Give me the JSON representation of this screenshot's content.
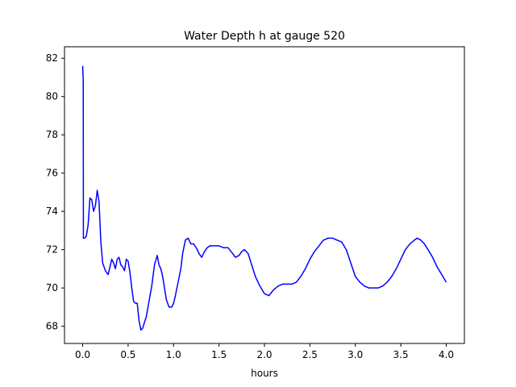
{
  "chart_data": {
    "type": "line",
    "title": "Water Depth h at gauge 520",
    "xlabel": "hours",
    "ylabel": "",
    "xlim": [
      -0.2,
      4.2
    ],
    "ylim": [
      67.1,
      82.6
    ],
    "xticks": [
      0.0,
      0.5,
      1.0,
      1.5,
      2.0,
      2.5,
      3.0,
      3.5,
      4.0
    ],
    "xtick_labels": [
      "0.0",
      "0.5",
      "1.0",
      "1.5",
      "2.0",
      "2.5",
      "3.0",
      "3.5",
      "4.0"
    ],
    "yticks": [
      68,
      70,
      72,
      74,
      76,
      78,
      80,
      82
    ],
    "ytick_labels": [
      "68",
      "70",
      "72",
      "74",
      "76",
      "78",
      "80",
      "82"
    ],
    "grid": false,
    "series": [
      {
        "color": "#0000ff",
        "x": [
          0.0,
          0.003,
          0.006,
          0.008,
          0.01,
          0.02,
          0.04,
          0.06,
          0.08,
          0.1,
          0.12,
          0.14,
          0.16,
          0.18,
          0.2,
          0.22,
          0.25,
          0.28,
          0.3,
          0.32,
          0.34,
          0.36,
          0.38,
          0.4,
          0.42,
          0.44,
          0.46,
          0.48,
          0.5,
          0.52,
          0.54,
          0.56,
          0.58,
          0.6,
          0.62,
          0.64,
          0.66,
          0.68,
          0.7,
          0.73,
          0.76,
          0.79,
          0.82,
          0.84,
          0.86,
          0.88,
          0.9,
          0.92,
          0.95,
          0.98,
          1.0,
          1.02,
          1.05,
          1.08,
          1.1,
          1.13,
          1.16,
          1.19,
          1.22,
          1.25,
          1.28,
          1.31,
          1.34,
          1.37,
          1.4,
          1.42,
          1.45,
          1.5,
          1.55,
          1.6,
          1.65,
          1.68,
          1.72,
          1.75,
          1.78,
          1.82,
          1.86,
          1.9,
          1.95,
          2.0,
          2.05,
          2.1,
          2.15,
          2.2,
          2.25,
          2.3,
          2.35,
          2.4,
          2.45,
          2.5,
          2.55,
          2.6,
          2.65,
          2.7,
          2.75,
          2.8,
          2.85,
          2.9,
          2.95,
          3.0,
          3.05,
          3.1,
          3.15,
          3.2,
          3.25,
          3.3,
          3.35,
          3.4,
          3.45,
          3.5,
          3.55,
          3.6,
          3.65,
          3.68,
          3.72,
          3.76,
          3.8,
          3.85,
          3.9,
          3.95,
          4.0
        ],
        "y": [
          81.6,
          81.2,
          80.9,
          72.6,
          72.6,
          72.6,
          72.7,
          73.3,
          74.7,
          74.6,
          74.0,
          74.3,
          75.1,
          74.5,
          72.4,
          71.3,
          70.9,
          70.7,
          71.1,
          71.5,
          71.3,
          71.0,
          71.5,
          71.6,
          71.2,
          71.1,
          70.9,
          71.5,
          71.4,
          70.8,
          70.0,
          69.3,
          69.2,
          69.2,
          68.3,
          67.8,
          67.9,
          68.2,
          68.5,
          69.3,
          70.1,
          71.2,
          71.7,
          71.2,
          71.0,
          70.6,
          70.0,
          69.4,
          69.0,
          69.0,
          69.2,
          69.6,
          70.3,
          71.0,
          71.8,
          72.5,
          72.6,
          72.3,
          72.3,
          72.1,
          71.8,
          71.6,
          71.9,
          72.1,
          72.2,
          72.2,
          72.2,
          72.2,
          72.1,
          72.1,
          71.8,
          71.6,
          71.7,
          71.9,
          72.0,
          71.8,
          71.2,
          70.6,
          70.1,
          69.7,
          69.6,
          69.9,
          70.1,
          70.2,
          70.2,
          70.2,
          70.3,
          70.6,
          71.0,
          71.5,
          71.9,
          72.2,
          72.5,
          72.6,
          72.6,
          72.5,
          72.4,
          72.0,
          71.3,
          70.6,
          70.3,
          70.1,
          70.0,
          70.0,
          70.0,
          70.1,
          70.3,
          70.6,
          71.0,
          71.5,
          72.0,
          72.3,
          72.5,
          72.6,
          72.5,
          72.3,
          72.0,
          71.6,
          71.1,
          70.7,
          70.3
        ]
      }
    ]
  }
}
